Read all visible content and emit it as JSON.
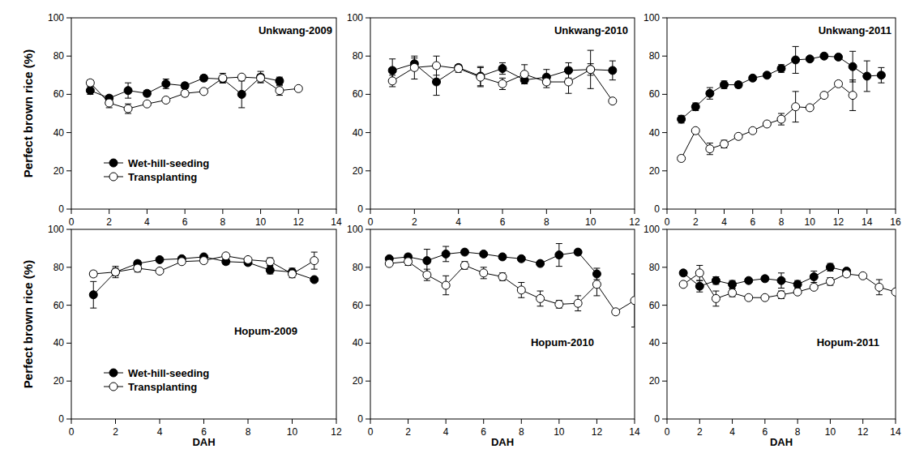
{
  "chart_data": [
    {
      "type": "line",
      "title": "Unkwang-2009",
      "y_label": "Perfect brown rice (%)",
      "xlim": [
        0,
        14
      ],
      "xticks": [
        0,
        2,
        4,
        6,
        8,
        10,
        12,
        14
      ],
      "ylim": [
        0,
        100
      ],
      "yticks": [
        0,
        20,
        40,
        60,
        80,
        100
      ],
      "legend": "lower left",
      "series": [
        {
          "name": "Wet-hill-seeding",
          "color": "#000000",
          "marker": "filled-circle",
          "x": [
            1,
            2,
            3,
            4,
            5,
            6,
            7,
            8,
            9,
            10,
            11
          ],
          "values": [
            62,
            58,
            62,
            60.5,
            65.5,
            64.5,
            68.5,
            68,
            60,
            69,
            67
          ],
          "errors": [
            2,
            1.5,
            4,
            1.5,
            2.5,
            1.5,
            1.5,
            2,
            7,
            3,
            2
          ]
        },
        {
          "name": "Transplanting",
          "color": "#000000",
          "marker": "open-circle",
          "x": [
            1,
            2,
            3,
            4,
            5,
            6,
            7,
            8,
            9,
            10,
            11,
            12
          ],
          "values": [
            66,
            55.5,
            52.5,
            55,
            57,
            60.5,
            61.5,
            68.5,
            69,
            68.5,
            62,
            63
          ],
          "errors": [
            1.5,
            2.5,
            2.5,
            1,
            1,
            1.5,
            1,
            2.5,
            1,
            2,
            2.5,
            1
          ]
        }
      ]
    },
    {
      "type": "line",
      "title": "Unkwang-2010",
      "xlim": [
        0,
        12
      ],
      "xticks": [
        0,
        2,
        4,
        6,
        8,
        10,
        12
      ],
      "ylim": [
        0,
        100
      ],
      "yticks": [
        0,
        20,
        40,
        60,
        80,
        100
      ],
      "series": [
        {
          "name": "Wet-hill-seeding",
          "color": "#000000",
          "marker": "filled-circle",
          "x": [
            1,
            2,
            3,
            4,
            5,
            6,
            7,
            8,
            9,
            10,
            11
          ],
          "values": [
            72.5,
            76,
            66.5,
            74,
            69.5,
            73.5,
            67.5,
            69,
            72.5,
            73,
            72.5
          ],
          "errors": [
            6,
            3,
            7,
            1,
            5,
            3,
            2,
            4,
            4,
            3,
            5
          ]
        },
        {
          "name": "Transplanting",
          "color": "#000000",
          "marker": "open-circle",
          "x": [
            1,
            2,
            3,
            4,
            5,
            6,
            7,
            8,
            9,
            10,
            11
          ],
          "values": [
            67,
            74,
            75,
            73.5,
            69,
            65.5,
            70.5,
            66.5,
            66.5,
            73,
            56.5
          ],
          "errors": [
            3,
            6,
            5,
            2,
            5,
            3,
            5,
            3,
            6,
            10,
            0
          ]
        }
      ]
    },
    {
      "type": "line",
      "title": "Unkwang-2011",
      "xlim": [
        0,
        16
      ],
      "xticks": [
        0,
        2,
        4,
        6,
        8,
        10,
        12,
        14,
        16
      ],
      "ylim": [
        0,
        100
      ],
      "yticks": [
        0,
        20,
        40,
        60,
        80,
        100
      ],
      "series": [
        {
          "name": "Wet-hill-seeding",
          "color": "#000000",
          "marker": "filled-circle",
          "x": [
            1,
            2,
            3,
            4,
            5,
            6,
            7,
            8,
            9,
            10,
            11,
            12,
            13,
            14,
            15
          ],
          "values": [
            47,
            53.5,
            60.5,
            65,
            65,
            68.5,
            70,
            73.5,
            78,
            78.5,
            80,
            79.5,
            74.5,
            69.5,
            70
          ],
          "errors": [
            2,
            2,
            3,
            2,
            1.5,
            1,
            1,
            2,
            7,
            1,
            1,
            1,
            8,
            8,
            4
          ]
        },
        {
          "name": "Transplanting",
          "color": "#000000",
          "marker": "open-circle",
          "x": [
            1,
            2,
            3,
            4,
            5,
            6,
            7,
            8,
            9,
            10,
            11,
            12,
            13
          ],
          "values": [
            26.5,
            41,
            31.5,
            34,
            38,
            41,
            44.5,
            47,
            53.5,
            53,
            59.5,
            65.5,
            59.5
          ],
          "errors": [
            1,
            1,
            3,
            2,
            1,
            1,
            1,
            3,
            8,
            1,
            1,
            1,
            8
          ]
        }
      ]
    },
    {
      "type": "line",
      "title": "Hopum-2009",
      "x_label": "DAH",
      "y_label": "Perfect brown rice (%)",
      "xlim": [
        0,
        12
      ],
      "xticks": [
        0,
        2,
        4,
        6,
        8,
        10,
        12
      ],
      "ylim": [
        0,
        100
      ],
      "yticks": [
        0,
        20,
        40,
        60,
        80,
        100
      ],
      "legend": "lower left",
      "series": [
        {
          "name": "Wet-hill-seeding",
          "color": "#000000",
          "marker": "filled-circle",
          "x": [
            1,
            2,
            3,
            4,
            5,
            6,
            7,
            8,
            9,
            10,
            11
          ],
          "values": [
            65.5,
            77.5,
            82,
            84,
            84.5,
            85.5,
            83,
            82.5,
            78.5,
            77.5,
            73.5
          ],
          "errors": [
            7,
            3,
            1.5,
            1,
            1,
            1,
            1.5,
            1.5,
            2,
            2,
            1
          ]
        },
        {
          "name": "Transplanting",
          "color": "#000000",
          "marker": "open-circle",
          "x": [
            1,
            2,
            3,
            4,
            5,
            6,
            7,
            8,
            9,
            10,
            11
          ],
          "values": [
            76.5,
            77.5,
            79.5,
            78,
            83,
            83.5,
            86,
            84,
            83,
            76.5,
            83.5
          ],
          "errors": [
            1.5,
            2,
            2,
            1,
            1,
            1,
            1,
            1,
            2,
            2,
            4.5
          ]
        }
      ]
    },
    {
      "type": "line",
      "title": "Hopum-2010",
      "x_label": "DAH",
      "xlim": [
        0,
        14
      ],
      "xticks": [
        0,
        2,
        4,
        6,
        8,
        10,
        12,
        14
      ],
      "ylim": [
        0,
        100
      ],
      "yticks": [
        0,
        20,
        40,
        60,
        80,
        100
      ],
      "series": [
        {
          "name": "Wet-hill-seeding",
          "color": "#000000",
          "marker": "filled-circle",
          "x": [
            1,
            2,
            3,
            4,
            5,
            6,
            7,
            8,
            9,
            10,
            11,
            12
          ],
          "values": [
            84.5,
            85.5,
            83.5,
            87,
            88,
            87,
            85.5,
            84.5,
            82,
            86.5,
            88,
            76.5
          ],
          "errors": [
            1,
            1.5,
            6,
            4,
            1,
            1,
            1,
            1,
            1,
            6,
            1,
            3
          ]
        },
        {
          "name": "Transplanting",
          "color": "#000000",
          "marker": "open-circle",
          "x": [
            1,
            2,
            3,
            4,
            5,
            6,
            7,
            8,
            9,
            10,
            11,
            12,
            13,
            14
          ],
          "values": [
            82,
            83,
            76,
            70.5,
            81,
            77,
            75,
            68,
            63.5,
            60.5,
            61,
            71,
            56.5,
            62.5
          ],
          "errors": [
            1,
            2,
            3,
            5,
            2,
            3,
            2,
            4,
            4,
            2,
            4,
            6,
            0,
            14
          ]
        }
      ]
    },
    {
      "type": "line",
      "title": "Hopum-2011",
      "x_label": "DAH",
      "xlim": [
        0,
        14
      ],
      "xticks": [
        0,
        2,
        4,
        6,
        8,
        10,
        12,
        14
      ],
      "ylim": [
        0,
        100
      ],
      "yticks": [
        0,
        20,
        40,
        60,
        80,
        100
      ],
      "series": [
        {
          "name": "Wet-hill-seeding",
          "color": "#000000",
          "marker": "filled-circle",
          "x": [
            1,
            2,
            3,
            4,
            5,
            6,
            7,
            8,
            9,
            10,
            11
          ],
          "values": [
            77,
            70,
            73,
            71,
            73,
            74,
            73,
            71,
            75,
            80,
            78
          ],
          "errors": [
            1,
            3,
            2,
            2,
            1,
            1,
            4,
            2,
            3,
            2,
            1
          ]
        },
        {
          "name": "Transplanting",
          "color": "#000000",
          "marker": "open-circle",
          "x": [
            1,
            2,
            3,
            4,
            5,
            6,
            7,
            8,
            9,
            10,
            11,
            12,
            13,
            14
          ],
          "values": [
            71,
            77,
            63.5,
            66.5,
            64,
            64,
            65.5,
            67,
            69.5,
            72.5,
            76.5,
            75.5,
            69.5,
            67
          ],
          "errors": [
            1,
            4,
            4,
            2,
            1,
            1,
            2,
            1,
            1,
            2,
            1,
            1,
            4,
            1
          ]
        }
      ]
    }
  ]
}
